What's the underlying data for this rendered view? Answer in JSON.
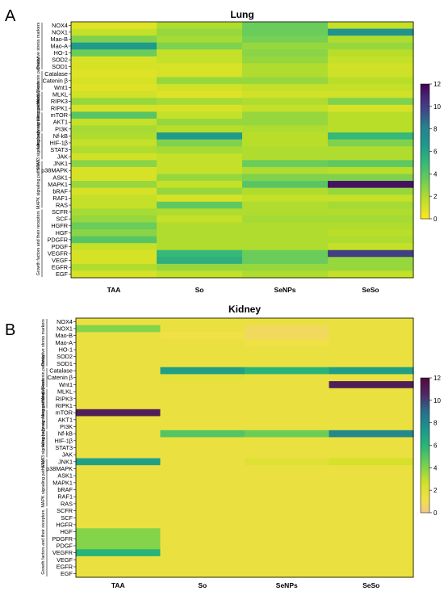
{
  "chart_data": [
    {
      "type": "heatmap",
      "panel": "A",
      "title": "Lung",
      "columns": [
        "TAA",
        "So",
        "SeNPs",
        "SeSo"
      ],
      "rows": [
        "NOX4",
        "NOX1",
        "Mao-B",
        "Mao-A",
        "HO-1",
        "SOD2",
        "SOD1",
        "Catalase",
        "Catenin β",
        "Wnt1",
        "MLKL",
        "RIPK3",
        "RIPK1",
        "mTOR",
        "AKT1",
        "PI3K",
        "Nf-kB",
        "HIF-1β",
        "STAT3",
        "JAK",
        "JNK1",
        "p38MAPK",
        "ASK1",
        "MAPK1",
        "bRAF",
        "RAF1",
        "RAS",
        "SCFR",
        "SCF",
        "HGFR",
        "HGF",
        "PDGFR",
        "PDGF",
        "VEGFR",
        "VEGF",
        "EGFR",
        "EGF"
      ],
      "groups": [
        {
          "label": "Oxidative stress markers",
          "first": "NOX4",
          "last": "SOD1"
        },
        {
          "label": "Wnt1/β-catenin pathway",
          "first": "Catalase",
          "last": "Wnt1"
        },
        {
          "label": "Necroptosis markers",
          "first": "MLKL",
          "last": "RIPK1"
        },
        {
          "label": "Autophagy signaling pathway",
          "first": "mTOR",
          "last": "PI3K"
        },
        {
          "label": "STAT3 signaling pathway",
          "first": "Nf-kB",
          "last": "JAK"
        },
        {
          "label": "MAPK signaling pathways",
          "first": "JNK1",
          "last": "RAS"
        },
        {
          "label": "Growth factors and their receptors",
          "first": "SCFR",
          "last": "EGF"
        }
      ],
      "values": [
        [
          0.8,
          2.0,
          3.5,
          1.5
        ],
        [
          1.5,
          2.5,
          3.5,
          7.0
        ],
        [
          3.0,
          2.2,
          3.2,
          2.0
        ],
        [
          6.5,
          3.0,
          2.5,
          2.5
        ],
        [
          3.5,
          1.5,
          2.8,
          1.8
        ],
        [
          1.0,
          1.5,
          2.5,
          1.5
        ],
        [
          1.0,
          1.0,
          2.0,
          1.2
        ],
        [
          0.8,
          1.0,
          2.0,
          1.3
        ],
        [
          1.0,
          2.5,
          2.5,
          1.8
        ],
        [
          0.8,
          1.2,
          1.5,
          1.5
        ],
        [
          1.2,
          0.8,
          1.2,
          1.2
        ],
        [
          2.5,
          2.2,
          2.0,
          3.0
        ],
        [
          1.0,
          1.0,
          1.5,
          1.0
        ],
        [
          4.0,
          1.5,
          2.5,
          1.8
        ],
        [
          1.5,
          2.5,
          2.5,
          1.8
        ],
        [
          2.2,
          1.8,
          2.0,
          1.8
        ],
        [
          2.0,
          6.5,
          1.8,
          5.0
        ],
        [
          1.5,
          3.0,
          1.8,
          3.0
        ],
        [
          2.0,
          2.2,
          2.0,
          2.0
        ],
        [
          1.2,
          1.5,
          2.0,
          2.0
        ],
        [
          2.8,
          1.5,
          3.5,
          3.8
        ],
        [
          1.0,
          1.5,
          2.0,
          1.8
        ],
        [
          1.0,
          2.5,
          3.0,
          3.0
        ],
        [
          2.5,
          1.5,
          4.0,
          11.5
        ],
        [
          1.0,
          2.5,
          2.0,
          2.5
        ],
        [
          1.5,
          1.0,
          1.5,
          1.5
        ],
        [
          1.5,
          3.8,
          2.0,
          2.2
        ],
        [
          2.2,
          2.0,
          2.0,
          2.0
        ],
        [
          2.5,
          1.5,
          2.2,
          2.2
        ],
        [
          3.5,
          2.0,
          2.0,
          2.0
        ],
        [
          2.8,
          2.0,
          2.0,
          1.8
        ],
        [
          4.0,
          2.0,
          2.0,
          2.0
        ],
        [
          1.5,
          2.0,
          2.0,
          1.5
        ],
        [
          1.0,
          5.0,
          3.5,
          10.0
        ],
        [
          1.0,
          5.5,
          3.5,
          2.5
        ],
        [
          2.0,
          2.5,
          2.5,
          2.5
        ],
        [
          1.0,
          1.5,
          2.0,
          1.5
        ]
      ],
      "colorbar": {
        "min": 0,
        "max": 12,
        "ticks": [
          0,
          2,
          4,
          6,
          8,
          10,
          12
        ],
        "colormap": "viridis-reversed"
      }
    },
    {
      "type": "heatmap",
      "panel": "B",
      "title": "Kidney",
      "columns": [
        "TAA",
        "So",
        "SeNPs",
        "SeSo"
      ],
      "rows": [
        "NOX4",
        "NOX1",
        "Mao-B",
        "Mao-A",
        "HO-1",
        "SOD2",
        "SOD1",
        "Catalase",
        "Catenin β",
        "Wnt1",
        "MLKL",
        "RIPK3",
        "RIPK1",
        "mTOR",
        "AKT1",
        "PI3K",
        "Nf-kB",
        "HIF-1β",
        "STAT3",
        "JAK",
        "JNK1",
        "p38MAPK",
        "ASK1",
        "MAPK1",
        "bRAF",
        "RAF1",
        "RAS",
        "SCFR",
        "SCF",
        "HGFR",
        "HGF",
        "PDGFR",
        "PDGF",
        "VEGFR",
        "VEGF",
        "EGFR",
        "EGF"
      ],
      "groups": [
        {
          "label": "Oxidative stress markers",
          "first": "NOX4",
          "last": "SOD1"
        },
        {
          "label": "Wnt1/β-catenin pathway",
          "first": "Catalase",
          "last": "Wnt1"
        },
        {
          "label": "Necroptosis markers",
          "first": "MLKL",
          "last": "RIPK1"
        },
        {
          "label": "Autophagy signaling pathway",
          "first": "mTOR",
          "last": "PI3K"
        },
        {
          "label": "STAT3 signaling pathway",
          "first": "Nf-kB",
          "last": "JAK"
        },
        {
          "label": "MAPK signaling pathways",
          "first": "JNK1",
          "last": "RAS"
        },
        {
          "label": "Growth factors and their receptors",
          "first": "SCFR",
          "last": "EGF"
        }
      ],
      "values": [
        [
          1.5,
          1.5,
          1.5,
          1.5
        ],
        [
          4.0,
          1.5,
          0.8,
          1.5
        ],
        [
          1.5,
          1.2,
          0.8,
          1.5
        ],
        [
          1.5,
          1.5,
          1.2,
          1.5
        ],
        [
          1.5,
          1.5,
          1.5,
          1.5
        ],
        [
          1.5,
          1.5,
          1.5,
          1.5
        ],
        [
          1.5,
          1.5,
          1.5,
          1.5
        ],
        [
          1.5,
          7.0,
          6.0,
          7.0
        ],
        [
          1.5,
          1.8,
          1.5,
          1.5
        ],
        [
          1.5,
          1.5,
          1.5,
          11.0
        ],
        [
          1.5,
          1.5,
          1.5,
          1.5
        ],
        [
          1.5,
          1.5,
          1.5,
          1.5
        ],
        [
          1.5,
          1.5,
          1.5,
          1.5
        ],
        [
          11.0,
          1.5,
          1.5,
          1.5
        ],
        [
          1.5,
          1.5,
          1.5,
          1.5
        ],
        [
          1.5,
          1.5,
          1.5,
          1.5
        ],
        [
          1.5,
          5.0,
          4.5,
          8.0
        ],
        [
          1.5,
          1.5,
          1.5,
          1.5
        ],
        [
          1.5,
          1.5,
          1.5,
          1.5
        ],
        [
          1.5,
          1.5,
          1.5,
          1.5
        ],
        [
          7.0,
          1.5,
          2.0,
          2.5
        ],
        [
          1.5,
          1.5,
          1.5,
          1.5
        ],
        [
          1.5,
          1.5,
          1.5,
          1.5
        ],
        [
          1.5,
          1.5,
          1.5,
          1.5
        ],
        [
          1.5,
          1.5,
          1.5,
          1.5
        ],
        [
          1.5,
          1.5,
          1.5,
          1.5
        ],
        [
          1.5,
          1.5,
          1.5,
          1.5
        ],
        [
          1.5,
          1.5,
          1.5,
          1.5
        ],
        [
          1.5,
          1.5,
          1.5,
          1.5
        ],
        [
          1.5,
          1.5,
          1.5,
          1.5
        ],
        [
          4.0,
          1.5,
          1.5,
          1.5
        ],
        [
          4.0,
          1.5,
          1.5,
          1.5
        ],
        [
          4.0,
          1.5,
          1.5,
          1.5
        ],
        [
          6.0,
          1.5,
          1.5,
          1.5
        ],
        [
          1.5,
          1.5,
          1.5,
          1.5
        ],
        [
          1.5,
          1.5,
          1.5,
          1.5
        ],
        [
          1.5,
          1.5,
          1.5,
          1.5
        ]
      ],
      "colorbar": {
        "min": 0,
        "max": 12,
        "ticks": [
          0,
          2,
          4,
          6,
          8,
          10,
          12
        ],
        "colormap": "viridis-turbo-reversed"
      }
    }
  ]
}
